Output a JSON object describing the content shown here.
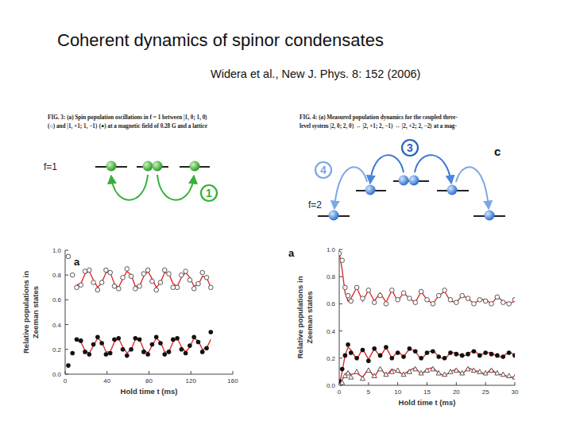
{
  "slide": {
    "title": "Coherent dynamics of spinor condensates",
    "citation": "Widera et al., New J. Phys. 8: 152 (2006)"
  },
  "figures": [
    {
      "caption": [
        "FIG. 3: (a) Spin population oscillations in f = 1 between |1, 0; 1, 0⟩",
        "(○) and |1, +1; 1, −1⟩ (●) at a magnetic field of 0.28 G and a lattice"
      ],
      "diagram": {
        "level_label": "f=1",
        "processes": [
          "1"
        ]
      }
    },
    {
      "caption": [
        "FIG. 4: (a) Measured population dynamics for the coupled three-",
        "level system |2, 0; 2, 0⟩ ↔ |2, +1; 2, −1⟩ ↔ |2, +2; 2, −2⟩ at a mag-"
      ],
      "diagram": {
        "level_label": "f=2",
        "processes": [
          "3",
          "4"
        ],
        "panel": "c"
      }
    }
  ],
  "chart_data": [
    {
      "type": "scatter",
      "panel": "a",
      "xlabel": "Hold time t (ms)",
      "ylabel": "Relative populations in Zeeman states",
      "x": [
        3,
        7,
        11,
        15,
        19,
        23,
        27,
        31,
        35,
        39,
        43,
        47,
        51,
        55,
        59,
        63,
        67,
        71,
        75,
        79,
        83,
        87,
        91,
        95,
        99,
        103,
        107,
        111,
        115,
        119,
        123,
        127,
        131,
        135,
        139
      ],
      "xlim": [
        0,
        160
      ],
      "xticks": [
        0,
        40,
        80,
        120,
        160
      ],
      "ylim": [
        0,
        1
      ],
      "yticks": [
        {
          "value": 0,
          "label": "0.0"
        },
        0.2,
        0.4,
        0.6,
        0.8,
        {
          "value": 1,
          "label": "1.0"
        }
      ],
      "series": [
        {
          "type": "scatter",
          "marker": "circle-open",
          "color": "#555555",
          "values": [
            0.95,
            0.8,
            0.7,
            0.72,
            0.83,
            0.84,
            0.74,
            0.68,
            0.74,
            0.84,
            0.82,
            0.71,
            0.69,
            0.78,
            0.85,
            0.79,
            0.69,
            0.71,
            0.81,
            0.84,
            0.75,
            0.68,
            0.74,
            0.84,
            0.81,
            0.7,
            0.7,
            0.8,
            0.83,
            0.76,
            0.69,
            0.73,
            0.82,
            0.78,
            0.7
          ]
        },
        {
          "type": "scatter",
          "marker": "circle",
          "color": "#111111",
          "values": [
            0.07,
            0.17,
            0.28,
            0.27,
            0.18,
            0.16,
            0.24,
            0.3,
            0.25,
            0.16,
            0.17,
            0.28,
            0.29,
            0.2,
            0.15,
            0.2,
            0.29,
            0.28,
            0.18,
            0.16,
            0.24,
            0.3,
            0.25,
            0.16,
            0.18,
            0.28,
            0.29,
            0.2,
            0.17,
            0.23,
            0.3,
            0.26,
            0.18,
            0.21,
            0.34
          ]
        },
        {
          "type": "line",
          "line_style": "solid",
          "color": "#e02020",
          "values": [
            null,
            null,
            0.72,
            0.73,
            0.81,
            0.83,
            0.76,
            0.7,
            0.74,
            0.82,
            0.82,
            0.73,
            0.7,
            0.77,
            0.83,
            0.8,
            0.71,
            0.71,
            0.79,
            0.83,
            0.77,
            0.7,
            0.74,
            0.82,
            0.81,
            0.73,
            0.71,
            0.78,
            0.82,
            0.78,
            0.71,
            0.72,
            0.79,
            0.78,
            0.7
          ]
        },
        {
          "type": "line",
          "line_style": "solid",
          "color": "#e02020",
          "values": [
            null,
            null,
            0.27,
            0.26,
            0.19,
            0.17,
            0.23,
            0.29,
            0.26,
            0.18,
            0.18,
            0.26,
            0.29,
            0.22,
            0.17,
            0.2,
            0.28,
            0.28,
            0.2,
            0.17,
            0.23,
            0.29,
            0.26,
            0.18,
            0.18,
            0.26,
            0.29,
            0.22,
            0.18,
            0.22,
            0.29,
            0.27,
            0.2,
            0.21,
            0.28
          ]
        }
      ]
    },
    {
      "type": "scatter",
      "panel": "a",
      "xlabel": "Hold time t (ms)",
      "ylabel": "Relative populations in Zeeman states",
      "x": [
        0,
        0.5,
        1,
        1.5,
        2,
        3,
        4,
        5,
        6,
        7,
        8,
        9,
        10,
        11,
        12,
        13,
        14,
        15,
        16,
        17,
        18,
        19,
        20,
        21,
        22,
        23,
        24,
        25,
        26,
        27,
        28,
        29,
        30
      ],
      "xlim": [
        0,
        30
      ],
      "xticks": [
        0,
        5,
        10,
        15,
        20,
        25,
        30
      ],
      "ylim": [
        0,
        1
      ],
      "yticks": [
        {
          "value": 0,
          "label": "0.0"
        },
        0.2,
        0.4,
        0.6,
        0.8,
        {
          "value": 1,
          "label": "1.0"
        }
      ],
      "series": [
        {
          "type": "scatter",
          "marker": "circle-open",
          "color": "#555555",
          "values": [
            0.97,
            0.92,
            0.72,
            0.66,
            0.62,
            0.72,
            0.64,
            0.7,
            0.61,
            0.66,
            0.6,
            0.7,
            0.63,
            0.68,
            0.64,
            0.61,
            0.69,
            0.63,
            0.6,
            0.66,
            0.7,
            0.63,
            0.61,
            0.66,
            0.64,
            0.6,
            0.63,
            0.62,
            0.6,
            0.65,
            0.61,
            0.6,
            0.63
          ]
        },
        {
          "type": "scatter",
          "marker": "circle",
          "color": "#111111",
          "values": [
            0.03,
            0.12,
            0.22,
            0.3,
            0.24,
            0.2,
            0.26,
            0.18,
            0.27,
            0.22,
            0.28,
            0.2,
            0.24,
            0.21,
            0.27,
            0.25,
            0.2,
            0.24,
            0.25,
            0.21,
            0.2,
            0.24,
            0.23,
            0.22,
            0.23,
            0.25,
            0.22,
            0.24,
            0.23,
            0.22,
            0.21,
            0.24,
            0.22
          ]
        },
        {
          "type": "scatter",
          "marker": "triangle-open",
          "color": "#555555",
          "values": [
            0,
            0.02,
            0.07,
            0.09,
            0.06,
            0.1,
            0.05,
            0.11,
            0.07,
            0.12,
            0.08,
            0.1,
            0.11,
            0.08,
            0.1,
            0.12,
            0.09,
            0.11,
            0.12,
            0.09,
            0.08,
            0.1,
            0.11,
            0.09,
            0.12,
            0.11,
            0.1,
            0.09,
            0.11,
            0.09,
            0.08,
            0.07,
            0.06
          ]
        },
        {
          "type": "line",
          "line_style": "solid",
          "color": "#e02020",
          "values": [
            0.98,
            0.85,
            0.68,
            0.62,
            0.64,
            0.72,
            0.62,
            0.7,
            0.62,
            0.68,
            0.61,
            0.7,
            0.62,
            0.68,
            0.64,
            0.61,
            0.69,
            0.63,
            0.6,
            0.66,
            0.69,
            0.62,
            0.61,
            0.66,
            0.64,
            0.6,
            0.63,
            0.63,
            0.6,
            0.65,
            0.62,
            0.6,
            0.62
          ]
        },
        {
          "type": "line",
          "line_style": "solid",
          "color": "#e02020",
          "values": [
            0,
            0.1,
            0.22,
            0.28,
            0.26,
            0.19,
            0.27,
            0.19,
            0.27,
            0.21,
            0.28,
            0.2,
            0.25,
            0.21,
            0.27,
            0.25,
            0.19,
            0.24,
            0.26,
            0.21,
            0.19,
            0.24,
            0.24,
            0.21,
            0.23,
            0.26,
            0.22,
            0.24,
            0.24,
            0.21,
            0.21,
            0.25,
            0.22
          ]
        },
        {
          "type": "line",
          "line_style": "solid",
          "color": "#e02020",
          "values": [
            0,
            0.04,
            0.08,
            0.1,
            0.08,
            0.09,
            0.06,
            0.12,
            0.06,
            0.13,
            0.07,
            0.12,
            0.1,
            0.08,
            0.11,
            0.13,
            0.08,
            0.12,
            0.13,
            0.09,
            0.07,
            0.1,
            0.12,
            0.08,
            0.13,
            0.11,
            0.1,
            0.08,
            0.12,
            0.08,
            0.08,
            0.06,
            0.06
          ]
        }
      ]
    }
  ]
}
